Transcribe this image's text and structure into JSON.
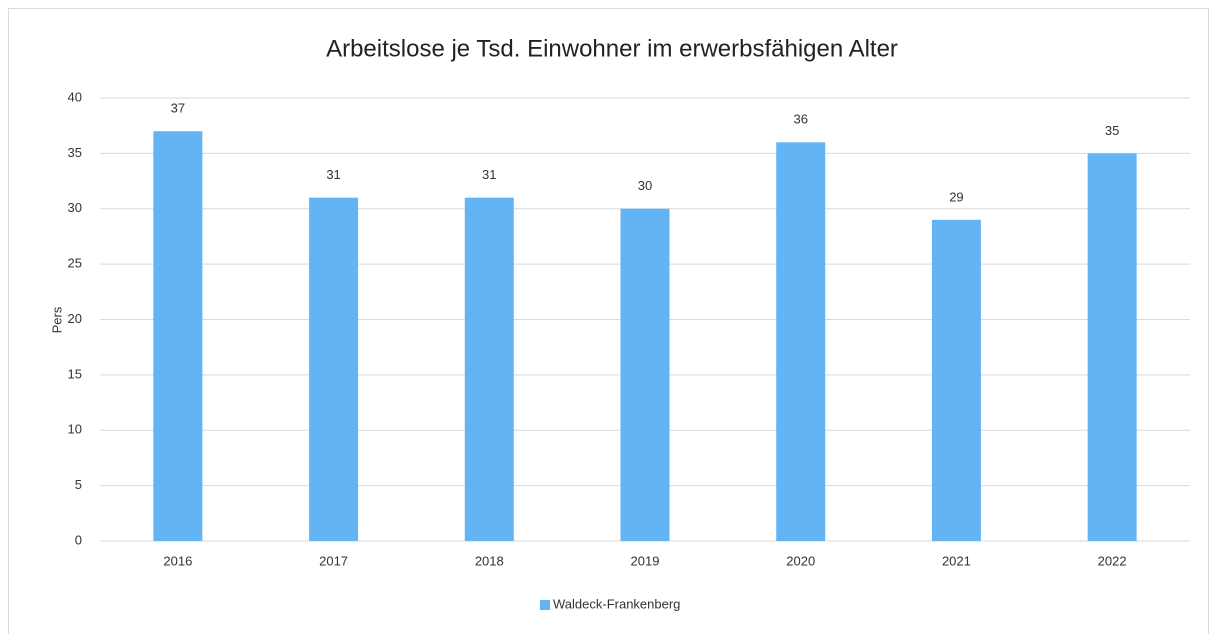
{
  "chart_data": {
    "type": "bar",
    "title": "Arbeitslose je Tsd. Einwohner im erwerbsfähigen Alter",
    "y_label": "Pers",
    "categories": [
      "2016",
      "2017",
      "2018",
      "2019",
      "2020",
      "2021",
      "2022"
    ],
    "series": [
      {
        "name": "Waldeck-Frankenberg",
        "color": "#63b4f5",
        "values": [
          37,
          31,
          31,
          30,
          36,
          29,
          35
        ]
      }
    ],
    "ylim": [
      0,
      40
    ],
    "yticks": [
      0,
      5,
      10,
      15,
      20,
      25,
      30,
      35,
      40
    ],
    "grid": true,
    "legend": "bottom"
  }
}
